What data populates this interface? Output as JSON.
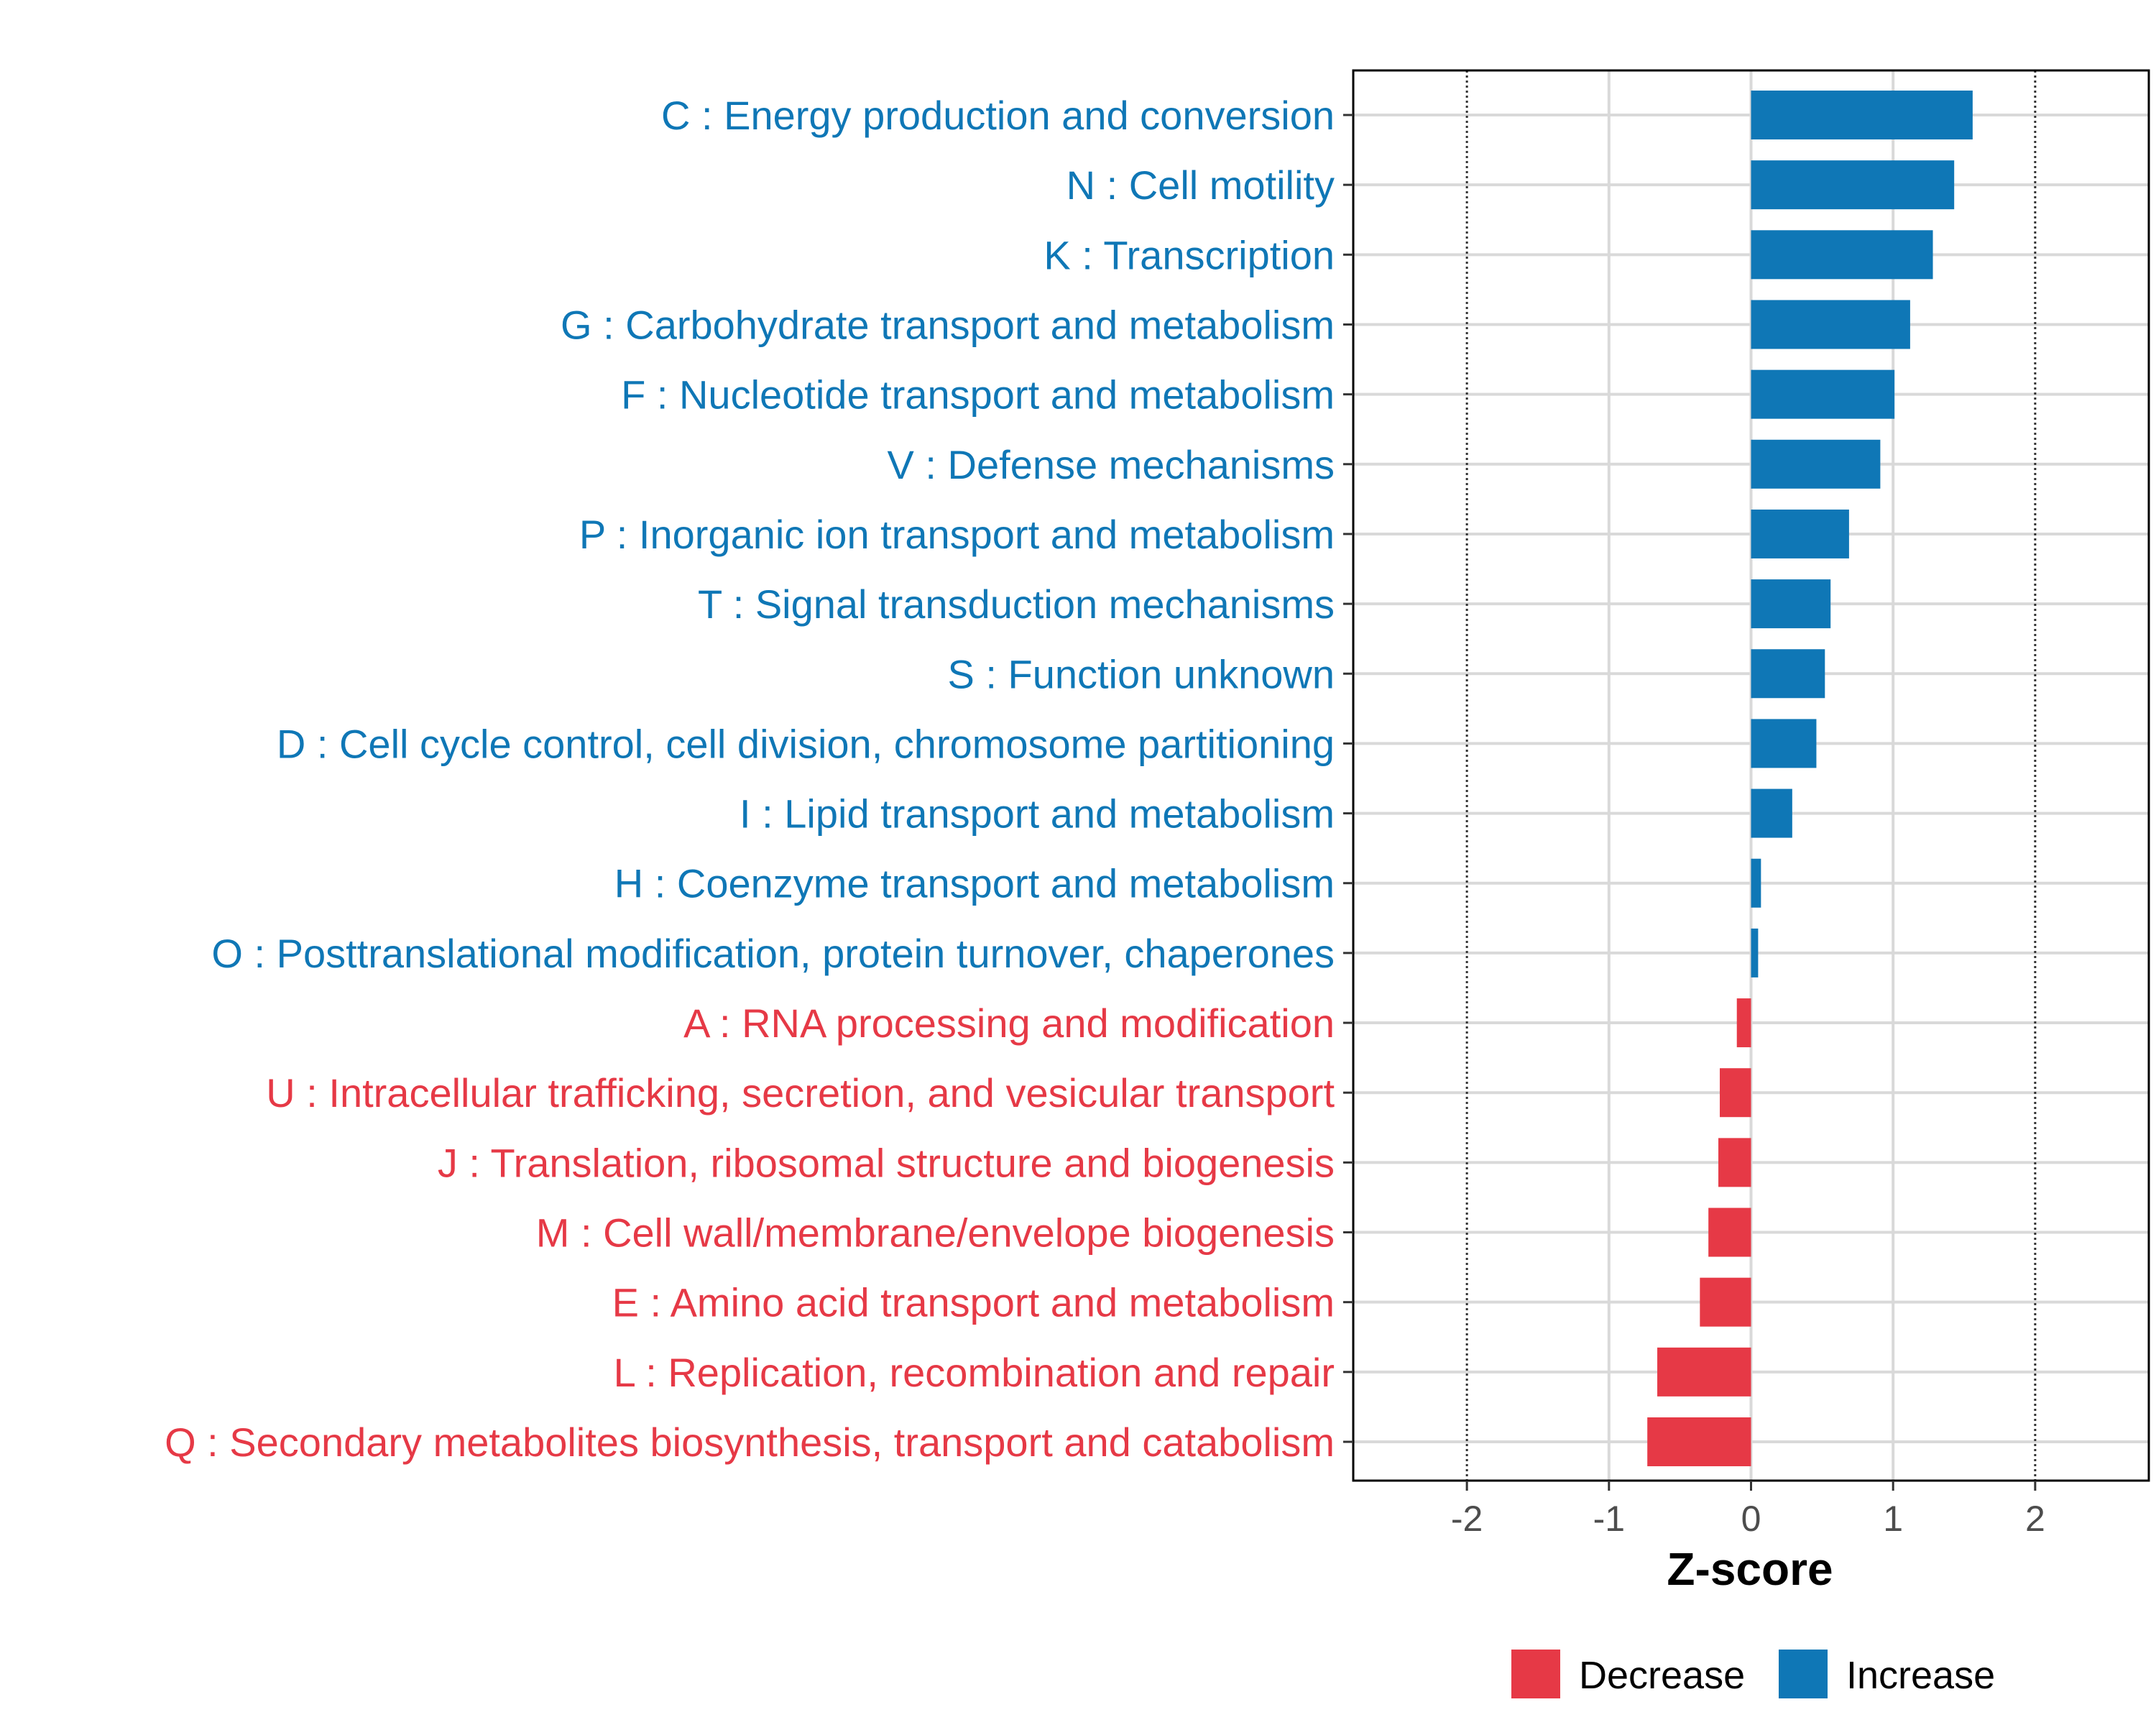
{
  "chart_data": {
    "type": "bar",
    "orientation": "horizontal",
    "xlabel": "Z-score",
    "xlim": [
      -2.8,
      2.8
    ],
    "xticks": [
      -2,
      -1,
      0,
      1,
      2
    ],
    "xtick_labels": [
      "-2",
      "-1",
      "0",
      "1",
      "2"
    ],
    "reference_lines": [
      -2,
      2
    ],
    "grid": true,
    "legend_position": "bottom",
    "colors": {
      "Decrease": "#e63946",
      "Increase": "#0f77b6"
    },
    "legend": [
      {
        "name": "Decrease",
        "color": "#e63946"
      },
      {
        "name": "Increase",
        "color": "#0f77b6"
      }
    ],
    "categories": [
      "C : Energy production and conversion",
      "N : Cell motility",
      "K : Transcription",
      "G : Carbohydrate transport and metabolism",
      "F : Nucleotide transport and metabolism",
      "V : Defense mechanisms",
      "P : Inorganic ion transport and metabolism",
      "T : Signal transduction mechanisms",
      "S : Function unknown",
      "D : Cell cycle control, cell division, chromosome partitioning",
      "I : Lipid transport and metabolism",
      "H : Coenzyme transport and metabolism",
      "O : Posttranslational modification, protein turnover, chaperones",
      "A : RNA processing and modification",
      "U : Intracellular trafficking, secretion, and vesicular transport",
      "J : Translation, ribosomal structure and biogenesis",
      "M : Cell wall/membrane/envelope biogenesis",
      "E : Amino acid transport and metabolism",
      "L : Replication, recombination and repair",
      "Q : Secondary metabolites biosynthesis, transport and catabolism"
    ],
    "values": [
      1.56,
      1.43,
      1.28,
      1.12,
      1.01,
      0.91,
      0.69,
      0.56,
      0.52,
      0.46,
      0.29,
      0.07,
      0.05,
      -0.1,
      -0.22,
      -0.23,
      -0.3,
      -0.36,
      -0.66,
      -0.73
    ],
    "groups": [
      "Increase",
      "Increase",
      "Increase",
      "Increase",
      "Increase",
      "Increase",
      "Increase",
      "Increase",
      "Increase",
      "Increase",
      "Increase",
      "Increase",
      "Increase",
      "Decrease",
      "Decrease",
      "Decrease",
      "Decrease",
      "Decrease",
      "Decrease",
      "Decrease"
    ]
  }
}
